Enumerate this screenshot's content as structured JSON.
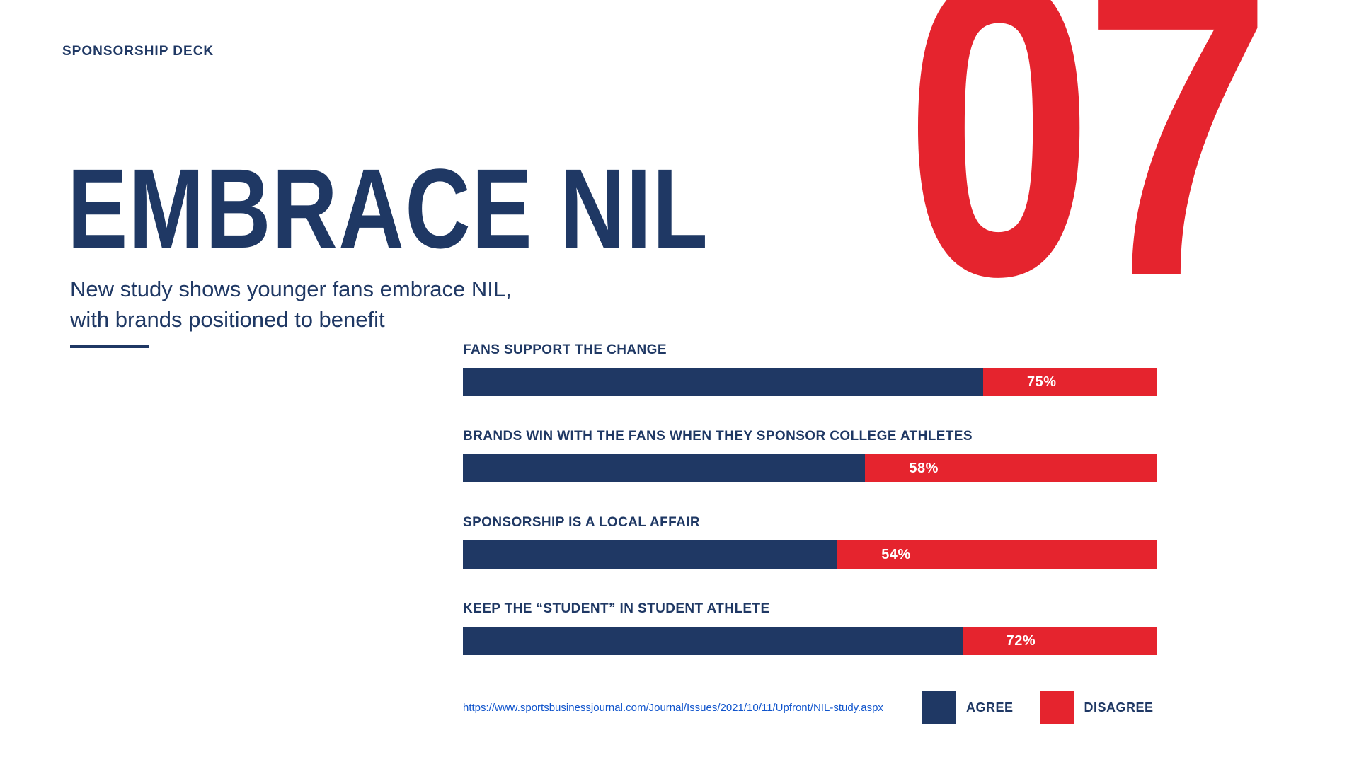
{
  "slide": {
    "kicker": "SPONSORSHIP DECK",
    "page_number": "07",
    "title": "EMBRACE NIL",
    "subtitle_line1": "New study shows younger fans embrace NIL,",
    "subtitle_line2": "with brands positioned to benefit",
    "source_link": "https://www.sportsbusinessjournal.com/Journal/Issues/2021/10/11/Upfront/NIL-study.aspx"
  },
  "legend": {
    "items": [
      {
        "label": "AGREE",
        "color": "#1F3864"
      },
      {
        "label": "DISAGREE",
        "color": "#E5242E"
      }
    ]
  },
  "colors": {
    "navy": "#1F3864",
    "red": "#E5242E",
    "link_blue": "#1155CC",
    "white": "#FFFFFF"
  },
  "chart_data": {
    "type": "bar",
    "orientation": "horizontal_stacked",
    "title": "",
    "categories": [
      "FANS SUPPORT THE CHANGE",
      "BRANDS WIN WITH THE FANS WHEN THEY SPONSOR COLLEGE ATHLETES",
      "SPONSORSHIP IS A LOCAL AFFAIR",
      "KEEP THE “STUDENT” IN STUDENT ATHLETE"
    ],
    "series": [
      {
        "name": "AGREE",
        "color": "#1F3864",
        "values": [
          75,
          58,
          54,
          72
        ]
      },
      {
        "name": "DISAGREE",
        "color": "#E5242E",
        "values": [
          25,
          42,
          46,
          28
        ]
      }
    ],
    "value_labels": [
      "75%",
      "58%",
      "54%",
      "72%"
    ],
    "xlim": [
      0,
      100
    ],
    "grid": false,
    "legend_position": "bottom_right"
  }
}
